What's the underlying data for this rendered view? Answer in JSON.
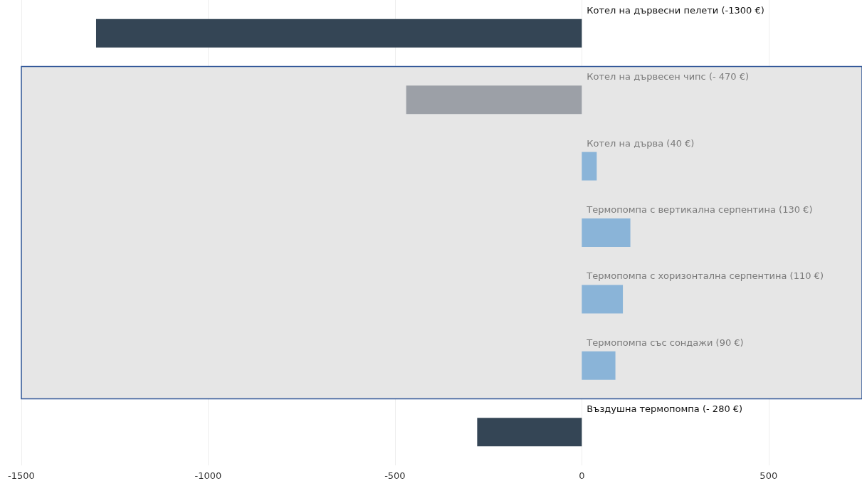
{
  "chart_data": {
    "type": "bar",
    "orientation": "horizontal",
    "categories": [
      "Котел на дървесни пелети",
      "Котел на дървесен чипс",
      "Котел на дърва",
      "Термопомпа с вертикална серпентина",
      "Термопомпа с хоризонтална серпентина",
      "Термопомпа със сондажи",
      "Въздушна термопомпа"
    ],
    "values": [
      -1300,
      -470,
      40,
      130,
      110,
      90,
      -280
    ],
    "value_labels": [
      "(-1300 €)",
      "(- 470 €)",
      "(40 €)",
      "(130 €)",
      "(110 €)",
      "(90 €)",
      "(- 280 €)"
    ],
    "colors": [
      "#344555",
      "#9ca0a7",
      "#8ab4d8",
      "#8ab4d8",
      "#8ab4d8",
      "#8ab4d8",
      "#344555"
    ],
    "xlim": [
      -1500,
      750
    ],
    "xticks": [
      -1500,
      -1000,
      -500,
      0,
      500
    ],
    "bands": [
      {
        "axis": "y",
        "from": "Котел на дървесен чипс",
        "to": "Термопомпа със сондажи",
        "color": "#e6e6e6"
      }
    ],
    "grid": "x",
    "tick_labels": "x"
  }
}
